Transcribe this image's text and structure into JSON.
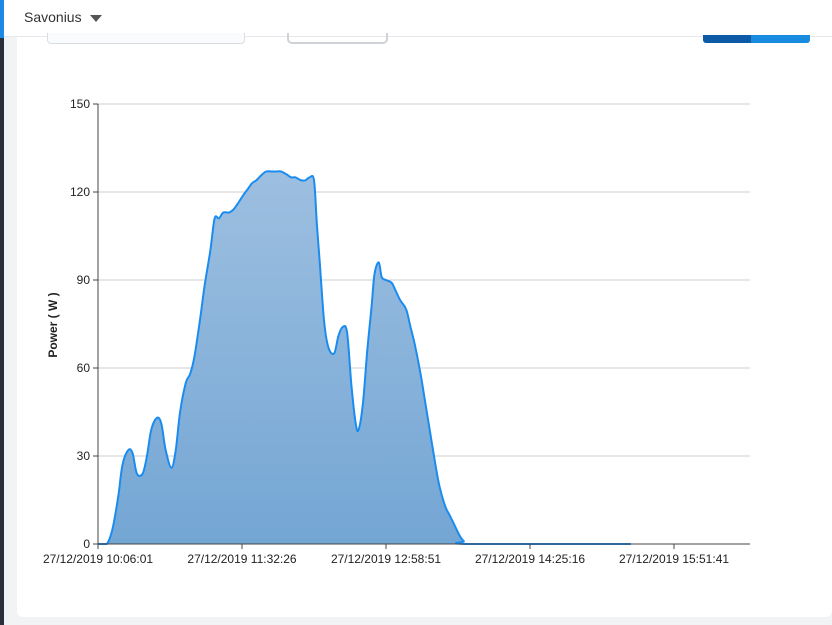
{
  "header": {
    "selector_label": "Savonius"
  },
  "colors": {
    "line": "#1a8cf0",
    "fill_top": "#9dbfe0",
    "fill_bottom": "#74a6d4",
    "grid": "#cccccc"
  },
  "chart_data": {
    "type": "area",
    "title": "",
    "xlabel": "",
    "ylabel": "Power ( W )",
    "ylim": [
      0,
      150
    ],
    "yticks": [
      0,
      30,
      60,
      90,
      120,
      150
    ],
    "x_tick_labels": [
      "27/12/2019 10:06:01",
      "27/12/2019 11:32:26",
      "27/12/2019 12:58:51",
      "27/12/2019 14:25:16",
      "27/12/2019 15:51:41"
    ],
    "grid": true,
    "legend": "none",
    "series": [
      {
        "points": [
          [
            0,
            0
          ],
          [
            0.06,
            0
          ],
          [
            0.1,
            5
          ],
          [
            0.14,
            16
          ],
          [
            0.17,
            27
          ],
          [
            0.21,
            32
          ],
          [
            0.24,
            31
          ],
          [
            0.27,
            24
          ],
          [
            0.31,
            24
          ],
          [
            0.34,
            30
          ],
          [
            0.37,
            39
          ],
          [
            0.41,
            43
          ],
          [
            0.44,
            41
          ],
          [
            0.47,
            32
          ],
          [
            0.51,
            26
          ],
          [
            0.54,
            32
          ],
          [
            0.57,
            45
          ],
          [
            0.61,
            55
          ],
          [
            0.64,
            58
          ],
          [
            0.67,
            64
          ],
          [
            0.71,
            77
          ],
          [
            0.74,
            88
          ],
          [
            0.78,
            100
          ],
          [
            0.81,
            111
          ],
          [
            0.84,
            111
          ],
          [
            0.87,
            113
          ],
          [
            0.91,
            113
          ],
          [
            0.94,
            114
          ],
          [
            0.97,
            116
          ],
          [
            1.01,
            119
          ],
          [
            1.04,
            121
          ],
          [
            1.07,
            123
          ],
          [
            1.1,
            124
          ],
          [
            1.14,
            126
          ],
          [
            1.17,
            127
          ],
          [
            1.21,
            127
          ],
          [
            1.24,
            127
          ],
          [
            1.27,
            127
          ],
          [
            1.31,
            126
          ],
          [
            1.34,
            125
          ],
          [
            1.37,
            125
          ],
          [
            1.41,
            124
          ],
          [
            1.44,
            124
          ],
          [
            1.47,
            125
          ],
          [
            1.5,
            124
          ],
          [
            1.52,
            109
          ],
          [
            1.54,
            96
          ],
          [
            1.57,
            76
          ],
          [
            1.6,
            67
          ],
          [
            1.64,
            65
          ],
          [
            1.67,
            71
          ],
          [
            1.7,
            74
          ],
          [
            1.73,
            72
          ],
          [
            1.76,
            54
          ],
          [
            1.79,
            41
          ],
          [
            1.81,
            39
          ],
          [
            1.84,
            48
          ],
          [
            1.87,
            66
          ],
          [
            1.9,
            81
          ],
          [
            1.92,
            92
          ],
          [
            1.95,
            96
          ],
          [
            1.97,
            91
          ],
          [
            2.0,
            90
          ],
          [
            2.04,
            89
          ],
          [
            2.07,
            86
          ],
          [
            2.1,
            83
          ],
          [
            2.14,
            80
          ],
          [
            2.17,
            74
          ],
          [
            2.2,
            68
          ],
          [
            2.24,
            58
          ],
          [
            2.27,
            49
          ],
          [
            2.3,
            40
          ],
          [
            2.34,
            28
          ],
          [
            2.37,
            20
          ],
          [
            2.41,
            13
          ],
          [
            2.44,
            10
          ],
          [
            2.47,
            7
          ],
          [
            2.51,
            3
          ],
          [
            2.54,
            1
          ],
          [
            2.58,
            0
          ],
          [
            3.7,
            0
          ]
        ]
      }
    ]
  }
}
